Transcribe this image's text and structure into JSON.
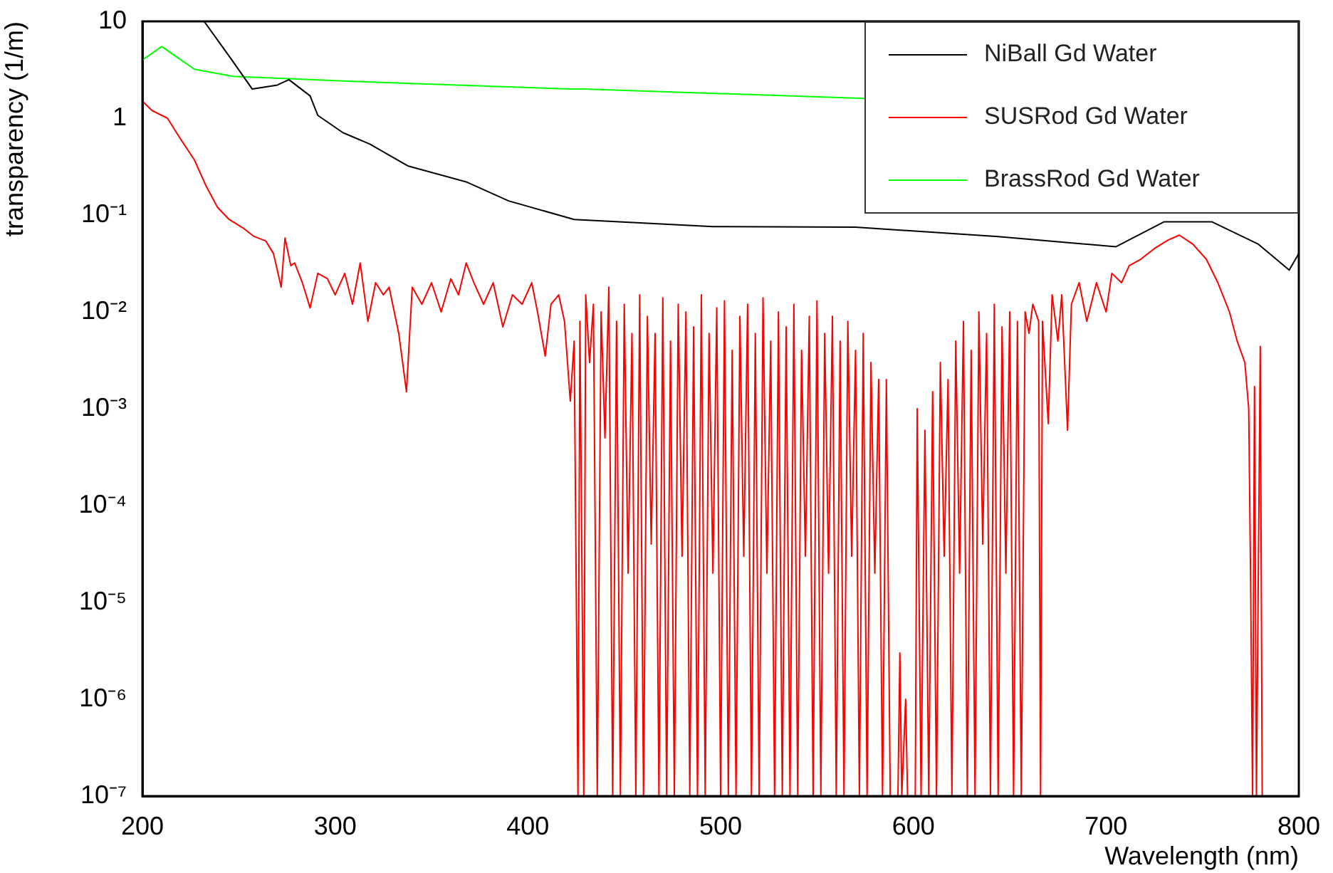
{
  "chart_data": {
    "type": "line",
    "xlabel": "Wavelength (nm)",
    "ylabel": "transparency (1/m)",
    "xlim": [
      200,
      800
    ],
    "xticks": [
      200,
      300,
      400,
      500,
      600,
      700,
      800
    ],
    "ylim": [
      1e-07,
      10
    ],
    "yticks": [
      {
        "value": 1e-07,
        "label": "10⁻⁷"
      },
      {
        "value": 1e-06,
        "label": "10⁻⁶"
      },
      {
        "value": 1e-05,
        "label": "10⁻⁵"
      },
      {
        "value": 0.0001,
        "label": "10⁻⁴"
      },
      {
        "value": 0.001,
        "label": "10⁻³"
      },
      {
        "value": 0.01,
        "label": "10⁻²"
      },
      {
        "value": 0.1,
        "label": "10⁻¹"
      },
      1,
      10
    ],
    "log": "y",
    "grid": false,
    "legend": "top right",
    "marker": "none",
    "line_style": "solid",
    "series": [
      {
        "name": "NiBall Gd Water",
        "color": "#000000",
        "x": [
          232,
          246,
          257,
          270,
          276,
          287,
          291,
          304,
          318,
          338,
          368,
          390,
          424,
          496,
          570,
          644,
          705,
          730,
          755,
          779,
          795,
          800
        ],
        "values": [
          10,
          4.1,
          2.0,
          2.2,
          2.5,
          1.7,
          1.07,
          0.71,
          0.54,
          0.32,
          0.22,
          0.14,
          0.09,
          0.076,
          0.075,
          0.06,
          0.047,
          0.085,
          0.085,
          0.05,
          0.027,
          0.04
        ]
      },
      {
        "name": "SUSRod Gd Water",
        "color": "#ff0000",
        "x": [
          200,
          205,
          213,
          220,
          227,
          233,
          239,
          245,
          252,
          258,
          264,
          268,
          272,
          274,
          277,
          279,
          283,
          287,
          291,
          296,
          300,
          305,
          309,
          313,
          317,
          321,
          325,
          328,
          333,
          337,
          340,
          345,
          350,
          355,
          360,
          364,
          368,
          372,
          377,
          382,
          387,
          392,
          397,
          402,
          405,
          409,
          412,
          416,
          419,
          422,
          424,
          426,
          427,
          429,
          430,
          432,
          434,
          436,
          438,
          440,
          442,
          444,
          446,
          448,
          450,
          452,
          454,
          456,
          458,
          460,
          462,
          464,
          466,
          468,
          470,
          472,
          474,
          476,
          478,
          480,
          482,
          484,
          486,
          488,
          490,
          492,
          494,
          496,
          498,
          500,
          502,
          504,
          506,
          508,
          510,
          512,
          514,
          516,
          518,
          520,
          522,
          524,
          526,
          528,
          530,
          532,
          534,
          536,
          538,
          540,
          542,
          544,
          546,
          548,
          550,
          552,
          554,
          556,
          558,
          560,
          562,
          564,
          566,
          568,
          570,
          572,
          574,
          576,
          578,
          580,
          582,
          584,
          586,
          588,
          592,
          593,
          594,
          596,
          597,
          601,
          602,
          604,
          606,
          608,
          610,
          612,
          614,
          616,
          618,
          620,
          622,
          624,
          626,
          628,
          630,
          632,
          634,
          636,
          638,
          640,
          642,
          644,
          646,
          648,
          650,
          652,
          654,
          656,
          658,
          660,
          662,
          665,
          666,
          667,
          670,
          672,
          675,
          677,
          680,
          682,
          686,
          690,
          695,
          700,
          703,
          708,
          712,
          718,
          725,
          732,
          738,
          745,
          752,
          758,
          764,
          768,
          772,
          774,
          775,
          776,
          777,
          778,
          780,
          781
        ],
        "values": [
          1.5,
          1.2,
          1.0,
          0.6,
          0.37,
          0.2,
          0.12,
          0.09,
          0.074,
          0.06,
          0.054,
          0.04,
          0.018,
          0.058,
          0.03,
          0.032,
          0.02,
          0.011,
          0.025,
          0.022,
          0.015,
          0.025,
          0.012,
          0.032,
          0.008,
          0.02,
          0.015,
          0.018,
          0.006,
          0.0015,
          0.018,
          0.012,
          0.02,
          0.01,
          0.022,
          0.015,
          0.032,
          0.02,
          0.012,
          0.02,
          0.007,
          0.015,
          0.012,
          0.02,
          0.01,
          0.0035,
          0.012,
          0.015,
          0.008,
          0.0012,
          0.005,
          1e-07,
          0.008,
          1e-07,
          0.015,
          0.003,
          0.012,
          1e-07,
          0.01,
          0.0005,
          0.018,
          1e-07,
          0.008,
          1e-07,
          0.012,
          2e-05,
          0.006,
          1e-07,
          0.015,
          1e-07,
          0.009,
          4e-05,
          0.006,
          1e-07,
          0.014,
          1e-07,
          0.005,
          1e-07,
          0.012,
          3e-05,
          0.01,
          1e-07,
          0.007,
          1e-07,
          0.015,
          1e-07,
          0.006,
          2e-05,
          0.011,
          1e-07,
          0.013,
          1e-07,
          0.004,
          1e-07,
          0.009,
          3e-05,
          0.012,
          1e-07,
          0.006,
          1e-07,
          0.014,
          2e-05,
          0.005,
          1e-07,
          0.01,
          1e-07,
          0.007,
          1e-07,
          0.012,
          1e-07,
          0.004,
          3e-05,
          0.009,
          1e-07,
          0.013,
          1e-07,
          0.006,
          2e-05,
          0.009,
          1e-07,
          0.005,
          1e-07,
          0.008,
          3e-05,
          0.004,
          1e-07,
          0.006,
          1e-07,
          0.003,
          2e-05,
          0.002,
          1e-07,
          0.002,
          1e-07,
          1e-07,
          3e-06,
          1e-07,
          1e-06,
          1e-07,
          1e-07,
          0.001,
          1e-07,
          0.0006,
          1e-07,
          0.0015,
          1e-07,
          0.003,
          3e-05,
          0.002,
          1e-07,
          0.005,
          2e-05,
          0.008,
          1e-07,
          0.004,
          1e-07,
          0.01,
          4e-05,
          0.006,
          1e-07,
          0.012,
          1e-07,
          0.007,
          2e-05,
          0.01,
          1e-07,
          0.008,
          1e-07,
          0.01,
          0.006,
          0.012,
          0.008,
          1e-07,
          0.008,
          0.0007,
          0.015,
          0.005,
          0.015,
          0.0006,
          0.012,
          0.02,
          0.008,
          0.02,
          0.01,
          0.025,
          0.02,
          0.03,
          0.035,
          0.045,
          0.055,
          0.062,
          0.05,
          0.035,
          0.02,
          0.01,
          0.005,
          0.003,
          0.001,
          1.6e-05,
          1e-07,
          0.0017,
          1e-07,
          0.0044,
          1e-07
        ]
      },
      {
        "name": "BrassRod Gd Water",
        "color": "#00ff00",
        "x": [
          200,
          210,
          227,
          247,
          309,
          422,
          429,
          575
        ],
        "values": [
          4.0,
          5.5,
          3.2,
          2.7,
          2.4,
          2.0,
          2.0,
          1.6
        ]
      }
    ]
  }
}
